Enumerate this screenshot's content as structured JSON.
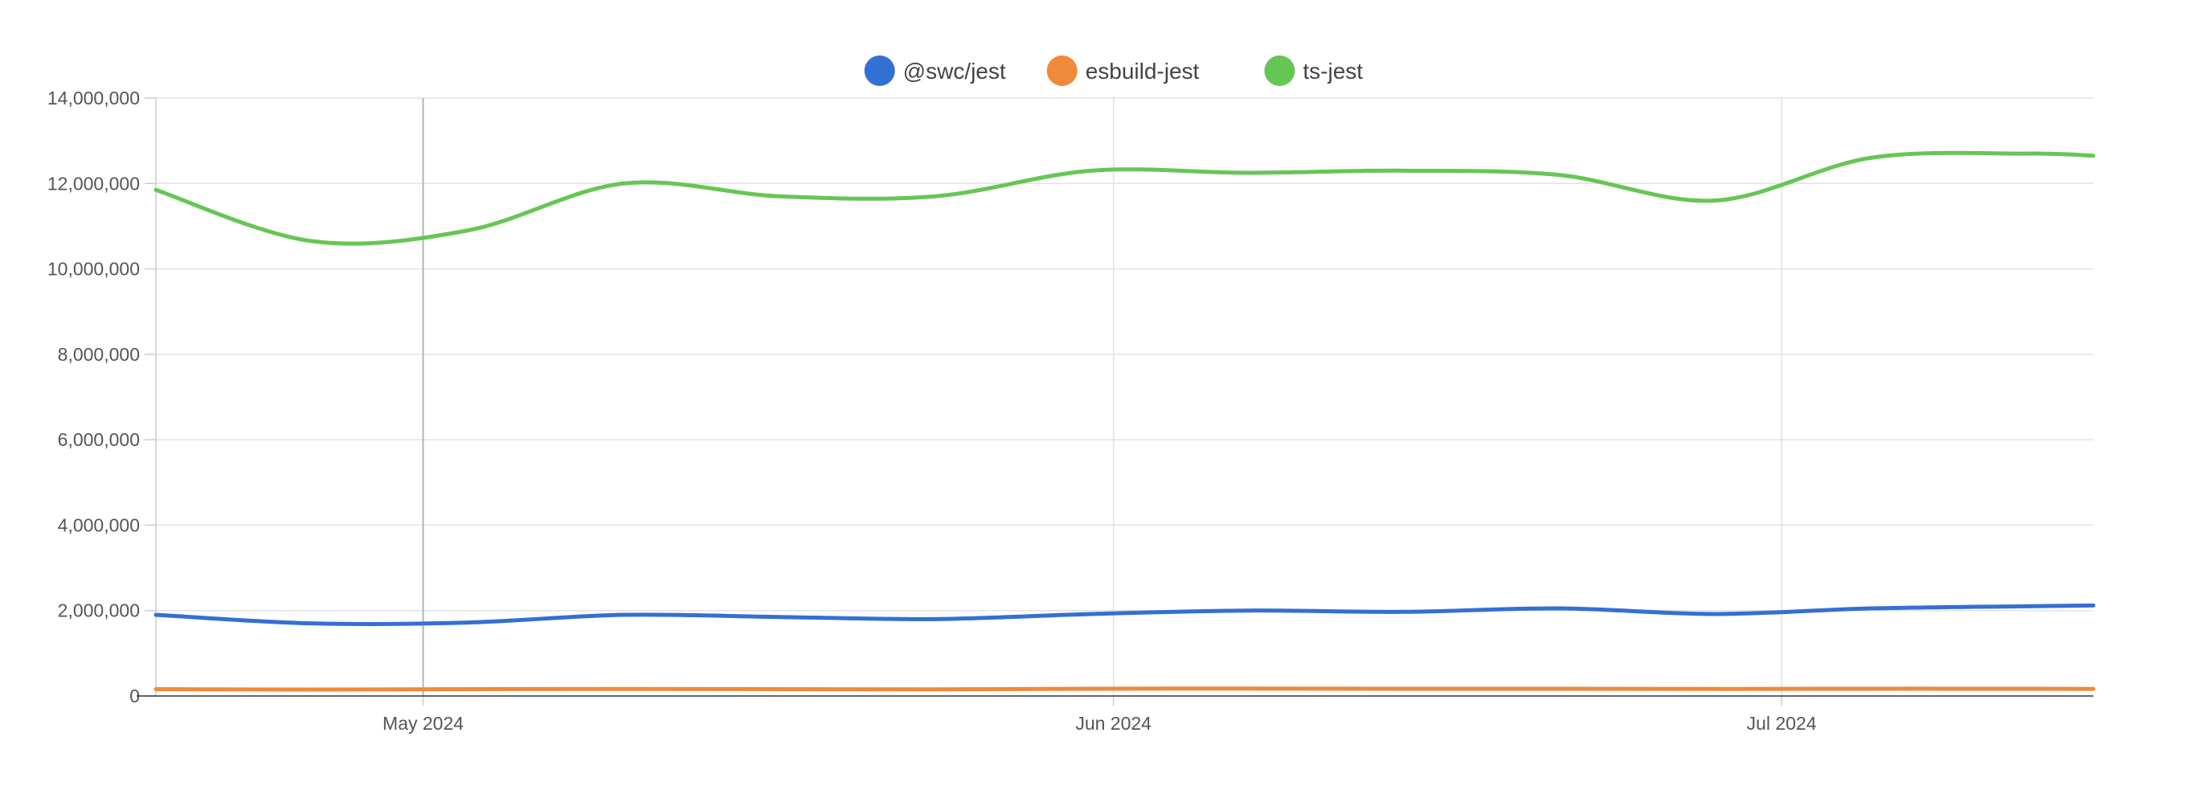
{
  "chart_data": {
    "type": "line",
    "title": "",
    "xlabel": "",
    "ylabel": "",
    "ylim": [
      0,
      14000000
    ],
    "y_ticks": [
      0,
      2000000,
      4000000,
      6000000,
      8000000,
      10000000,
      12000000,
      14000000
    ],
    "y_tick_labels": [
      "0",
      "2,000,000",
      "4,000,000",
      "6,000,000",
      "8,000,000",
      "10,000,000",
      "12,000,000",
      "14,000,000"
    ],
    "x_range": [
      "2024-04-19",
      "2024-07-15"
    ],
    "x_ticks": [
      "2024-05-01",
      "2024-06-01",
      "2024-07-01"
    ],
    "x_tick_labels": [
      "May 2024",
      "Jun 2024",
      "Jul 2024"
    ],
    "highlight_date": "2024-05-01",
    "grid": true,
    "legend_position": "top-center",
    "x": [
      "2024-04-19",
      "2024-04-26",
      "2024-05-03",
      "2024-05-10",
      "2024-05-17",
      "2024-05-24",
      "2024-05-31",
      "2024-06-07",
      "2024-06-14",
      "2024-06-21",
      "2024-06-28",
      "2024-07-05",
      "2024-07-12",
      "2024-07-15"
    ],
    "series": [
      {
        "name": "@swc/jest",
        "color": "#3370d4",
        "values": [
          1900000,
          1700000,
          1720000,
          1900000,
          1850000,
          1800000,
          1920000,
          2000000,
          1970000,
          2050000,
          1920000,
          2050000,
          2100000,
          2120000
        ]
      },
      {
        "name": "esbuild-jest",
        "color": "#ef8a3a",
        "values": [
          160000,
          150000,
          160000,
          165000,
          160000,
          155000,
          170000,
          175000,
          170000,
          170000,
          165000,
          170000,
          170000,
          165000
        ]
      },
      {
        "name": "ts-jest",
        "color": "#66c655",
        "values": [
          11850000,
          10650000,
          10900000,
          12000000,
          11700000,
          11700000,
          12300000,
          12250000,
          12300000,
          12200000,
          11600000,
          12600000,
          12700000,
          12650000
        ]
      }
    ]
  }
}
